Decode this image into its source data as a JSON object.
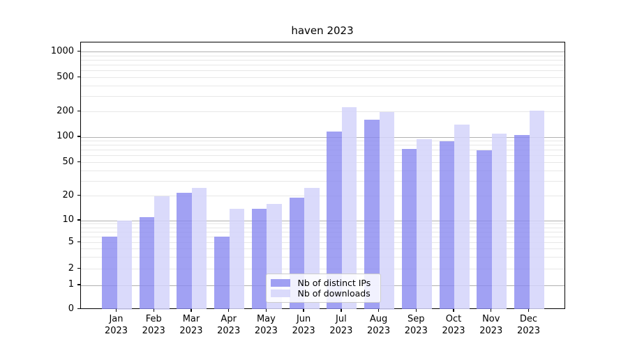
{
  "chart": {
    "title": "haven 2023"
  },
  "legend": {
    "items": [
      {
        "label": "Nb of distinct IPs",
        "color": "rgba(138,138,240,0.8)"
      },
      {
        "label": "Nb of downloads",
        "color": "rgba(212,212,250,0.85)"
      }
    ]
  },
  "chart_data": {
    "type": "bar",
    "title": "haven 2023",
    "categories": [
      "Jan",
      "Feb",
      "Mar",
      "Apr",
      "May",
      "Jun",
      "Jul",
      "Aug",
      "Sep",
      "Oct",
      "Nov",
      "Dec"
    ],
    "year_label": "2023",
    "series": [
      {
        "name": "Nb of distinct IPs",
        "values": [
          6,
          11,
          22,
          6,
          14,
          19,
          117,
          160,
          72,
          90,
          70,
          105
        ]
      },
      {
        "name": "Nb of downloads",
        "values": [
          10,
          20,
          25,
          14,
          16,
          25,
          225,
          200,
          95,
          140,
          110,
          205
        ]
      }
    ],
    "xlabel": "",
    "ylabel": "",
    "yscale": "symlog",
    "yticks": [
      0,
      1,
      2,
      5,
      10,
      20,
      50,
      100,
      200,
      500,
      1000
    ],
    "ylim": [
      0,
      1300
    ],
    "grid": true,
    "legend_position": "lower center"
  },
  "colors": {
    "bar_distinct_ips": "rgba(138,138,240,0.8)",
    "bar_downloads": "rgba(212,212,250,0.85)",
    "grid_major": "#b0b0b0",
    "grid_minor": "#e7e7e7",
    "axis": "#000000",
    "background": "#ffffff"
  }
}
